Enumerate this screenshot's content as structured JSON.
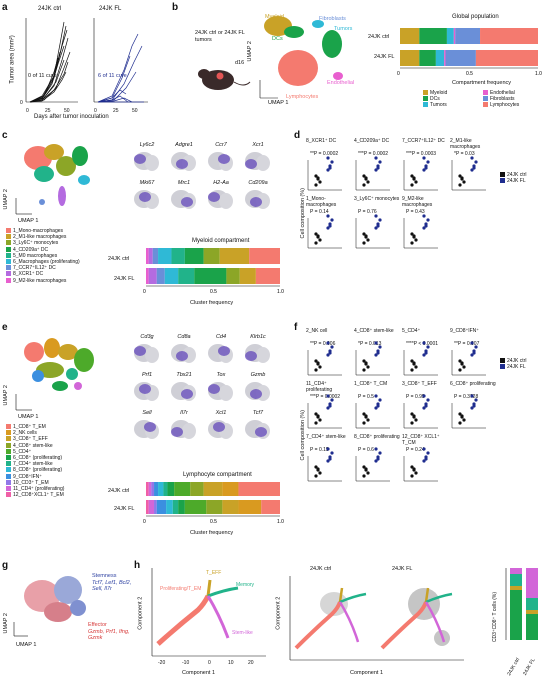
{
  "panel_labels": {
    "a": "a",
    "b": "b",
    "c": "c",
    "d": "d",
    "e": "e",
    "f": "f",
    "g": "g",
    "h": "h"
  },
  "panel_a": {
    "ylabel": "Tumor area (mm²)",
    "xlabel": "Days after tumor inoculation",
    "ctrl_title": "24JK ctrl",
    "fl_title": "24JK FL",
    "ctrl_cure": "0 of 11 cure",
    "fl_cure": "6 of 11 cure",
    "yticks": [
      "0",
      "100",
      "200",
      "300",
      "400"
    ],
    "xticks": [
      "0",
      "25",
      "50"
    ],
    "colors": {
      "ctrl": "#111111",
      "fl": "#1f2d8f"
    }
  },
  "panel_b": {
    "mouse_text": "24JK ctrl or 24JK FL tumors",
    "d16": "d16",
    "umap_x": "UMAP 1",
    "umap_y": "UMAP 2",
    "clusters": [
      "Myeloid",
      "Fibroblasts",
      "DCs",
      "Tumors",
      "Endothelial",
      "Lymphocytes"
    ],
    "chart_title": "Global population",
    "rows": [
      "24JK ctrl",
      "24JK FL"
    ],
    "xlabel": "Compartment frequency",
    "xticks": [
      "0",
      "0.5",
      "1.0"
    ],
    "legend": [
      {
        "label": "Myeloid",
        "color": "#c9a227"
      },
      {
        "label": "DCs",
        "color": "#1aa34a"
      },
      {
        "label": "Tumors",
        "color": "#2fb9d6"
      },
      {
        "label": "Endothelial",
        "color": "#e85fcf"
      },
      {
        "label": "Fibroblasts",
        "color": "#6a8fd8"
      },
      {
        "label": "Lymphocytes",
        "color": "#f47a6f"
      }
    ]
  },
  "panel_c": {
    "umap_x": "UMAP 1",
    "umap_y": "UMAP 2",
    "genes": [
      "Ly6c2",
      "Adgre1",
      "Ccr7",
      "Xcr1",
      "Mki67",
      "Mrc1",
      "H2-Aa",
      "Cd209a"
    ],
    "legend": [
      {
        "label": "1_Mono-macrophages",
        "color": "#f47a6f"
      },
      {
        "label": "2_M1-like macrophages",
        "color": "#c9a227"
      },
      {
        "label": "3_Ly6C⁺ monocytes",
        "color": "#8ca627"
      },
      {
        "label": "4_CD209a⁺ DC",
        "color": "#1aa34a"
      },
      {
        "label": "5_M0 macrophages",
        "color": "#21b38a"
      },
      {
        "label": "6_Macrophages (proliferating)",
        "color": "#2fb9d6"
      },
      {
        "label": "7_CCR7⁺IL12⁺ DC",
        "color": "#6a8fd8"
      },
      {
        "label": "8_XCR1⁺ DC",
        "color": "#b46be0"
      },
      {
        "label": "9_M2-like macrophages",
        "color": "#e85fcf"
      }
    ],
    "chart_title": "Myeloid compartment",
    "rows": [
      "24JK ctrl",
      "24JK FL"
    ],
    "xlabel": "Cluster frequency",
    "xticks": [
      "0",
      "0.5",
      "1.0"
    ]
  },
  "panel_d": {
    "ylabel": "Cell composition (%)",
    "legend": [
      "24JK ctrl",
      "24JK FL"
    ],
    "plots": [
      {
        "title": "8_XCR1⁺ DC",
        "p": "**P = 0.0002"
      },
      {
        "title": "4_CD209a⁺ DC",
        "p": "***P = 0.0002"
      },
      {
        "title": "7_CCR7⁺IL12⁺ DC",
        "p": "***P = 0.0003"
      },
      {
        "title": "2_M1-like macrophages",
        "p": "*P = 0.03"
      },
      {
        "title": "1_Mono-macrophages",
        "p": "P = 0.14"
      },
      {
        "title": "3_Ly6C⁺ monocytes",
        "p": "P = 0.76"
      },
      {
        "title": "9_M2-like macrophages",
        "p": "P = 0.43"
      }
    ]
  },
  "panel_e": {
    "umap_x": "UMAP 1",
    "umap_y": "UMAP 2",
    "genes": [
      "Cd3g",
      "Cd8a",
      "Cd4",
      "Klrb1c",
      "Prf1",
      "Tbx21",
      "Tox",
      "Gzmb",
      "Sell",
      "Il7r",
      "Xcl1",
      "Tcf7"
    ],
    "legend": [
      {
        "label": "1_CD8⁺ T_EM",
        "color": "#f47a6f"
      },
      {
        "label": "2_NK cells",
        "color": "#d99a20"
      },
      {
        "label": "3_CD8⁺ T_EFF",
        "color": "#c9a227"
      },
      {
        "label": "4_CD8⁺ stem-like",
        "color": "#8ca627"
      },
      {
        "label": "5_CD4⁺",
        "color": "#4daa2a"
      },
      {
        "label": "6_CD8⁺ (proliferating)",
        "color": "#1aa34a"
      },
      {
        "label": "7_CD4⁺ stem-like",
        "color": "#21b38a"
      },
      {
        "label": "8_CD8⁺ (proliferating)",
        "color": "#2fb9d6"
      },
      {
        "label": "9_CD8⁺IFN⁺",
        "color": "#3b8fe0"
      },
      {
        "label": "10_CD3⁺ T_EM",
        "color": "#8f78e8"
      },
      {
        "label": "11_CD4⁺ (proliferating)",
        "color": "#d266d8"
      },
      {
        "label": "12_CD8⁺XCL1⁺ T_EM",
        "color": "#f05fa6"
      }
    ],
    "chart_title": "Lymphocyte compartment",
    "rows": [
      "24JK ctrl",
      "24JK FL"
    ],
    "xlabel": "Cluster frequency",
    "xticks": [
      "0",
      "0.5",
      "1.0"
    ]
  },
  "panel_f": {
    "ylabel": "Cell composition (%)",
    "legend": [
      "24JK ctrl",
      "24JK FL"
    ],
    "plots": [
      {
        "title": "2_NK cell",
        "p": "**P = 0.006"
      },
      {
        "title": "4_CD8⁺ stem-like",
        "p": "*P = 0.013"
      },
      {
        "title": "5_CD4⁺",
        "p": "****P < 0.0001"
      },
      {
        "title": "9_CD8⁺IFN⁺",
        "p": "**P = 0.007"
      },
      {
        "title": "11_CD4⁺ proliferating",
        "p": "***P = 0.0002"
      },
      {
        "title": "1_CD8⁺ T_CM",
        "p": "P = 0.5"
      },
      {
        "title": "3_CD8⁺ T_EFF",
        "p": "P = 0.95"
      },
      {
        "title": "6_CD8⁺ proliferating",
        "p": "P = 0.3728"
      },
      {
        "title": "7_CD4⁺ stem-like",
        "p": "P = 0.15"
      },
      {
        "title": "8_CD8⁺ proliferating",
        "p": "P = 0.6"
      },
      {
        "title": "12_CD8⁺ XCL1⁺ T_CM",
        "p": "P = 0.24"
      }
    ]
  },
  "panel_g": {
    "umap_x": "UMAP 1",
    "umap_y": "UMAP 2",
    "stemness": "Stemness",
    "stem_genes": "Tcf7, Lef1, Bcl2, Sell, Il7r",
    "effector": "Effector",
    "eff_genes": "Gzmb, Prf1, Ifng, Gzmk"
  },
  "panel_h": {
    "xlabel": "Component 1",
    "ylabel": "Component 2",
    "traj_labels": [
      "Proliferating/T_EM",
      "T_EFF",
      "Memory",
      "Stem-like"
    ],
    "ctrl_title": "24JK ctrl",
    "fl_title": "24JK FL",
    "bar_ylabel": "CD3⁺CD8⁺ T cells (%)",
    "bar_rows": [
      "24JK ctrl",
      "24JK FL"
    ],
    "xticks": [
      "-20",
      "-10",
      "0",
      "10",
      "20"
    ],
    "yticks": [
      "-10",
      "0",
      "10"
    ]
  },
  "chart_data": [
    {
      "type": "bar",
      "title": "Global population",
      "categories": [
        "24JK ctrl",
        "24JK FL"
      ],
      "series": [
        {
          "name": "Myeloid",
          "values": [
            0.14,
            0.14
          ]
        },
        {
          "name": "DCs",
          "values": [
            0.2,
            0.12
          ]
        },
        {
          "name": "Tumors",
          "values": [
            0.05,
            0.06
          ]
        },
        {
          "name": "Endothelial",
          "values": [
            0.01,
            0.01
          ]
        },
        {
          "name": "Fibroblasts",
          "values": [
            0.18,
            0.22
          ]
        },
        {
          "name": "Lymphocytes",
          "values": [
            0.42,
            0.45
          ]
        }
      ],
      "xlabel": "Compartment frequency",
      "xlim": [
        0,
        1
      ]
    },
    {
      "type": "bar",
      "title": "Myeloid compartment",
      "categories": [
        "24JK ctrl",
        "24JK FL"
      ],
      "series": [
        {
          "name": "9_M2-like macrophages",
          "values": [
            0.02,
            0.02
          ]
        },
        {
          "name": "8_XCR1⁺ DC",
          "values": [
            0.03,
            0.06
          ]
        },
        {
          "name": "7_CCR7⁺IL12⁺ DC",
          "values": [
            0.04,
            0.06
          ]
        },
        {
          "name": "6_Macrophages (proliferating)",
          "values": [
            0.1,
            0.1
          ]
        },
        {
          "name": "5_M0 macrophages",
          "values": [
            0.1,
            0.12
          ]
        },
        {
          "name": "4_CD209a⁺ DC",
          "values": [
            0.14,
            0.24
          ]
        },
        {
          "name": "3_Ly6C⁺ monocytes",
          "values": [
            0.12,
            0.1
          ]
        },
        {
          "name": "2_M1-like macrophages",
          "values": [
            0.22,
            0.12
          ]
        },
        {
          "name": "1_Mono-macrophages",
          "values": [
            0.23,
            0.18
          ]
        }
      ],
      "xlabel": "Cluster frequency",
      "xlim": [
        0,
        1
      ]
    },
    {
      "type": "bar",
      "title": "Lymphocyte compartment",
      "categories": [
        "24JK ctrl",
        "24JK FL"
      ],
      "series": [
        {
          "name": "12",
          "values": [
            0.02,
            0.02
          ]
        },
        {
          "name": "11",
          "values": [
            0.02,
            0.04
          ]
        },
        {
          "name": "10",
          "values": [
            0.02,
            0.02
          ]
        },
        {
          "name": "9",
          "values": [
            0.03,
            0.07
          ]
        },
        {
          "name": "8",
          "values": [
            0.04,
            0.05
          ]
        },
        {
          "name": "7",
          "values": [
            0.03,
            0.04
          ]
        },
        {
          "name": "6",
          "values": [
            0.05,
            0.05
          ]
        },
        {
          "name": "5",
          "values": [
            0.12,
            0.16
          ]
        },
        {
          "name": "4",
          "values": [
            0.1,
            0.12
          ]
        },
        {
          "name": "3",
          "values": [
            0.14,
            0.12
          ]
        },
        {
          "name": "2",
          "values": [
            0.12,
            0.17
          ]
        },
        {
          "name": "1",
          "values": [
            0.31,
            0.14
          ]
        }
      ],
      "xlabel": "Cluster frequency",
      "xlim": [
        0,
        1
      ]
    }
  ]
}
